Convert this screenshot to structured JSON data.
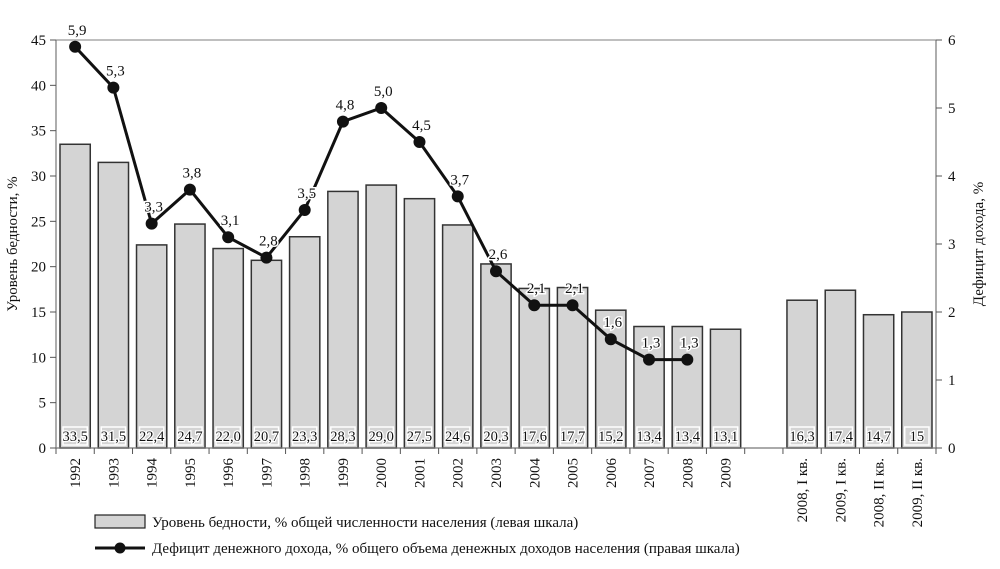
{
  "chart_data": {
    "type": "bar+line",
    "categories": [
      "1992",
      "1993",
      "1994",
      "1995",
      "1996",
      "1997",
      "1998",
      "1999",
      "2000",
      "2001",
      "2002",
      "2003",
      "2004",
      "2005",
      "2006",
      "2007",
      "2008",
      "2009",
      "",
      "2008, I кв.",
      "2009, I кв.",
      "2008, II кв.",
      "2009, II кв."
    ],
    "series": [
      {
        "name": "Уровень бедности, % общей численности населения (левая шкала)",
        "kind": "bar",
        "axis": "left",
        "values": [
          33.5,
          31.5,
          22.4,
          24.7,
          22.0,
          20.7,
          23.3,
          28.3,
          29.0,
          27.5,
          24.6,
          20.3,
          17.6,
          17.7,
          15.2,
          13.4,
          13.4,
          13.1,
          null,
          16.3,
          17.4,
          14.7,
          15
        ],
        "labels": [
          "33,5",
          "31,5",
          "22,4",
          "24,7",
          "22,0",
          "20,7",
          "23,3",
          "28,3",
          "29,0",
          "27,5",
          "24,6",
          "20,3",
          "17,6",
          "17,7",
          "15,2",
          "13,4",
          "13,4",
          "13,1",
          "",
          "16,3",
          "17,4",
          "14,7",
          "15"
        ]
      },
      {
        "name": "Дефицит денежного дохода, % общего объема денежных доходов населения (правая шкала)",
        "kind": "line",
        "axis": "right",
        "values": [
          5.9,
          5.3,
          3.3,
          3.8,
          3.1,
          2.8,
          3.5,
          4.8,
          5.0,
          4.5,
          3.7,
          2.6,
          2.1,
          2.1,
          1.6,
          1.3,
          1.3,
          null,
          null,
          null,
          null,
          null,
          null
        ],
        "labels": [
          "5,9",
          "5,3",
          "3,3",
          "3,8",
          "3,1",
          "2,8",
          "3,5",
          "4,8",
          "5,0",
          "4,5",
          "3,7",
          "2,6",
          "2,1",
          "2,1",
          "1,6",
          "1,3",
          "1,3",
          "",
          "",
          "",
          "",
          "",
          ""
        ]
      }
    ],
    "ylabel": "Уровень бедности, %",
    "ylabel_right": "Дефицит дохода, %",
    "ylim": [
      0,
      45
    ],
    "ylim_right": [
      0,
      6
    ],
    "yticks": [
      "0",
      "5",
      "10",
      "15",
      "20",
      "25",
      "30",
      "35",
      "40",
      "45"
    ],
    "yticks_right": [
      "0",
      "1",
      "2",
      "3",
      "4",
      "5",
      "6"
    ],
    "legend_position": "bottom-left",
    "colors": {
      "bar": "#d4d4d4",
      "line": "#111111"
    }
  }
}
